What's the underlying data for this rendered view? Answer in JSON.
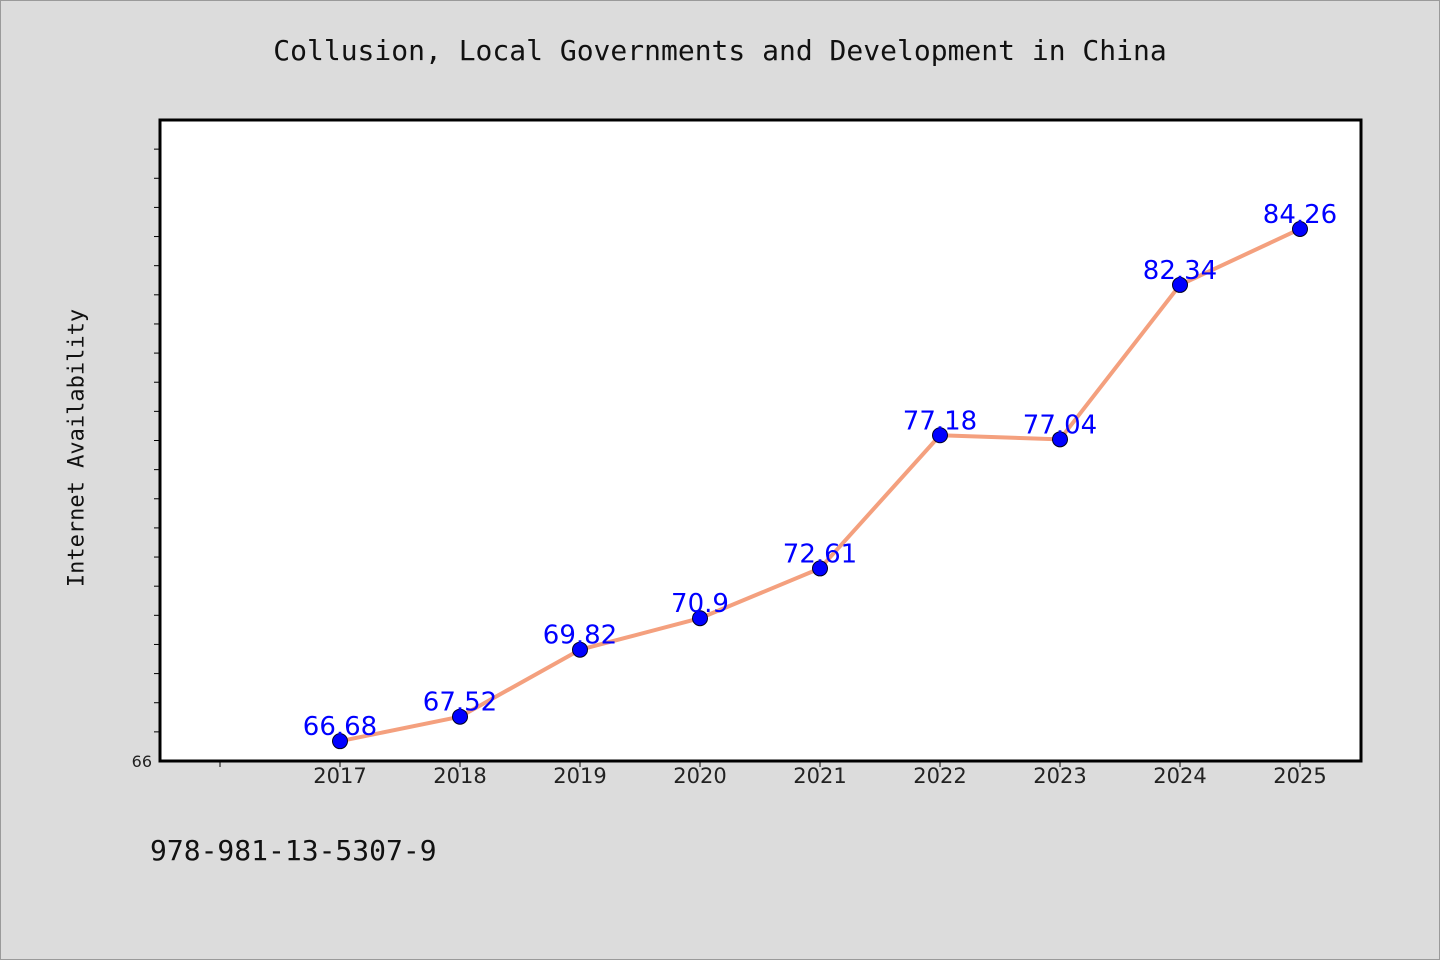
{
  "chart_data": {
    "type": "line",
    "title": "Collusion, Local Governments and Development in China",
    "xlabel": "",
    "ylabel": "Internet Availability",
    "categories": [
      "2017",
      "2018",
      "2019",
      "2020",
      "2021",
      "2022",
      "2023",
      "2024",
      "2025"
    ],
    "series": [
      {
        "values": [
          66.68,
          67.52,
          69.82,
          70.9,
          72.61,
          77.18,
          77.04,
          82.34,
          84.26
        ],
        "labels": [
          "66.68",
          "67.52",
          "69.82",
          "70.9",
          "72.61",
          "77.18",
          "77.04",
          "82.34",
          "84.26"
        ],
        "line_color": "#f4a07e",
        "marker_color": "#0000ff",
        "label_color": "#0000ff"
      }
    ],
    "ylim": [
      66,
      88
    ],
    "y_tick_labels": [
      "66"
    ],
    "grid": false,
    "legend": "none"
  },
  "footnote": "978-981-13-5307-9"
}
